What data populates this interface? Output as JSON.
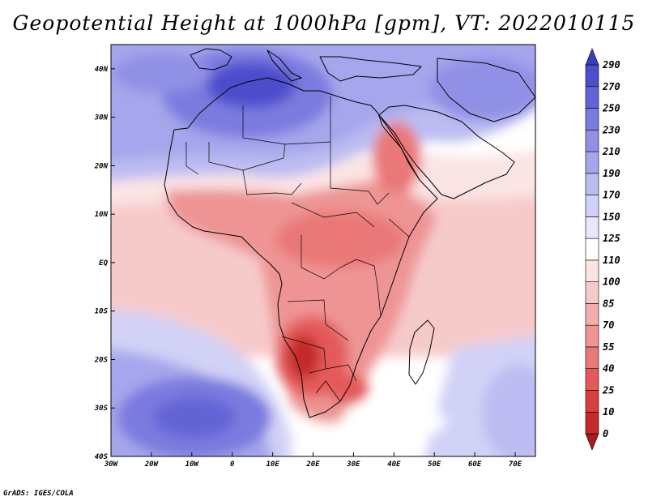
{
  "title": "Geopotential Height at 1000hPa [gpm], VT: 2022010115",
  "credit": "GrADS: IGES/COLA",
  "map": {
    "projection": "latlon",
    "lon_range": [
      -30,
      75
    ],
    "lat_range": [
      -40,
      45
    ],
    "x_ticks": [
      {
        "lon": -30,
        "label": "30W"
      },
      {
        "lon": -20,
        "label": "20W"
      },
      {
        "lon": -10,
        "label": "10W"
      },
      {
        "lon": 0,
        "label": "0"
      },
      {
        "lon": 10,
        "label": "10E"
      },
      {
        "lon": 20,
        "label": "20E"
      },
      {
        "lon": 30,
        "label": "30E"
      },
      {
        "lon": 40,
        "label": "40E"
      },
      {
        "lon": 50,
        "label": "50E"
      },
      {
        "lon": 60,
        "label": "60E"
      },
      {
        "lon": 70,
        "label": "70E"
      }
    ],
    "y_ticks": [
      {
        "lat": 40,
        "label": "40N"
      },
      {
        "lat": 30,
        "label": "30N"
      },
      {
        "lat": 20,
        "label": "20N"
      },
      {
        "lat": 10,
        "label": "10N"
      },
      {
        "lat": 0,
        "label": "EQ"
      },
      {
        "lat": -10,
        "label": "10S"
      },
      {
        "lat": -20,
        "label": "20S"
      },
      {
        "lat": -30,
        "label": "30S"
      },
      {
        "lat": -40,
        "label": "40S"
      }
    ],
    "features": [
      {
        "name": "africa-landmass",
        "kind": "coastline"
      },
      {
        "name": "arabian-peninsula",
        "kind": "coastline"
      },
      {
        "name": "madagascar",
        "kind": "coastline"
      },
      {
        "name": "iberian-peninsula",
        "kind": "coastline"
      },
      {
        "name": "italy",
        "kind": "coastline"
      },
      {
        "name": "greece-turkey",
        "kind": "coastline"
      },
      {
        "name": "iran-pakistan",
        "kind": "coastline"
      }
    ],
    "field_centers": [
      {
        "name": "saharan-high",
        "lon": 10,
        "lat": 33,
        "value": 280
      },
      {
        "name": "sw-atlantic-high",
        "lon": -15,
        "lat": -30,
        "value": 240
      },
      {
        "name": "kalahari-low",
        "lon": 18,
        "lat": -20,
        "value": 15
      },
      {
        "name": "red-sea-low",
        "lon": 38,
        "lat": 18,
        "value": 55
      },
      {
        "name": "central-africa-low",
        "lon": 24,
        "lat": 5,
        "value": 70
      }
    ]
  },
  "colorbar": {
    "levels": [
      "0",
      "10",
      "25",
      "40",
      "55",
      "70",
      "85",
      "100",
      "110",
      "125",
      "150",
      "170",
      "190",
      "210",
      "230",
      "250",
      "270",
      "290"
    ],
    "colors": [
      "#a81c1c",
      "#c42b2b",
      "#d84040",
      "#e45a5a",
      "#ea7878",
      "#ee9494",
      "#f3afaf",
      "#f7caca",
      "#fbe4e4",
      "#ffffff",
      "#e8e8fb",
      "#d2d2f7",
      "#bcbcf2",
      "#a6a6ec",
      "#9090e6",
      "#7a7adf",
      "#6464d6",
      "#4e4ecc",
      "#3c3cbe"
    ]
  }
}
